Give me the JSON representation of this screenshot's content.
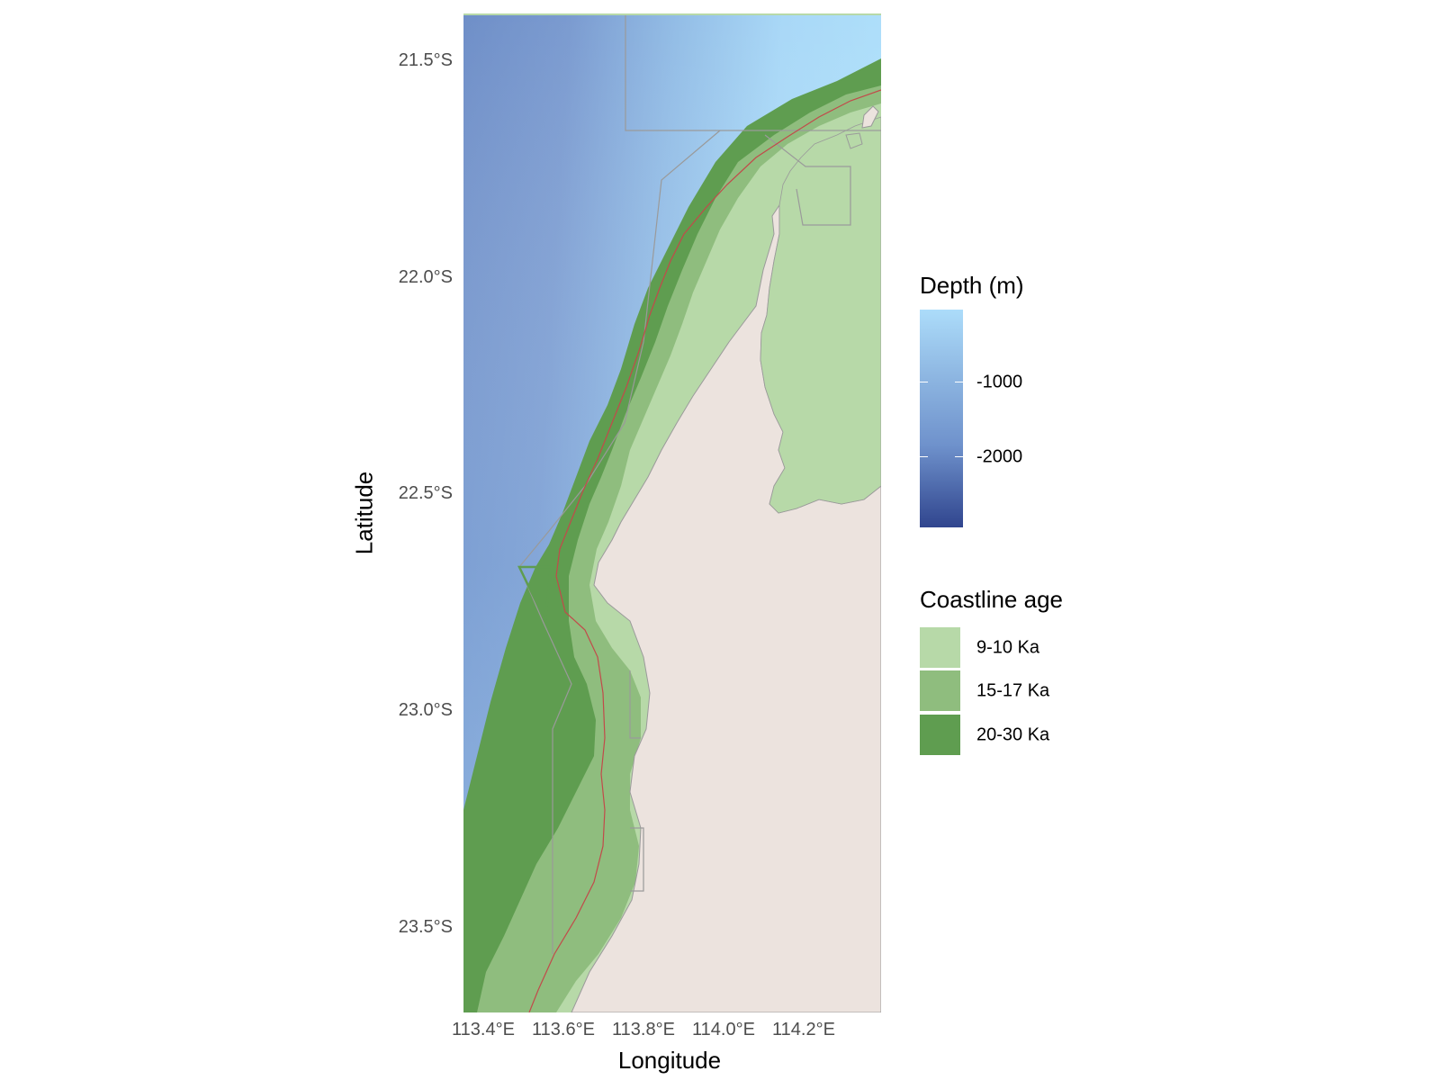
{
  "axes": {
    "x_title": "Longitude",
    "y_title": "Latitude",
    "x_ticks": [
      "113.4°E",
      "113.6°E",
      "113.8°E",
      "114.0°E",
      "114.2°E"
    ],
    "y_ticks": [
      "21.5°S",
      "22.0°S",
      "22.5°S",
      "23.0°S",
      "23.5°S"
    ]
  },
  "legend_depth": {
    "title": "Depth (m)",
    "labels": [
      "-1000",
      "-2000"
    ],
    "colors": {
      "shallow": "#acdcfa",
      "mid": "#7b9bd0",
      "deep": "#30458e"
    }
  },
  "legend_coast": {
    "title": "Coastline age",
    "items": [
      {
        "label": "9-10 Ka",
        "color": "#b7d9a8"
      },
      {
        "label": "15-17 Ka",
        "color": "#8fbd7e"
      },
      {
        "label": "20-30 Ka",
        "color": "#5f9d50"
      }
    ]
  },
  "map_colors": {
    "land": "#ece3de",
    "boundary": "#9a9a9a",
    "red_line": "#c24a4a"
  }
}
